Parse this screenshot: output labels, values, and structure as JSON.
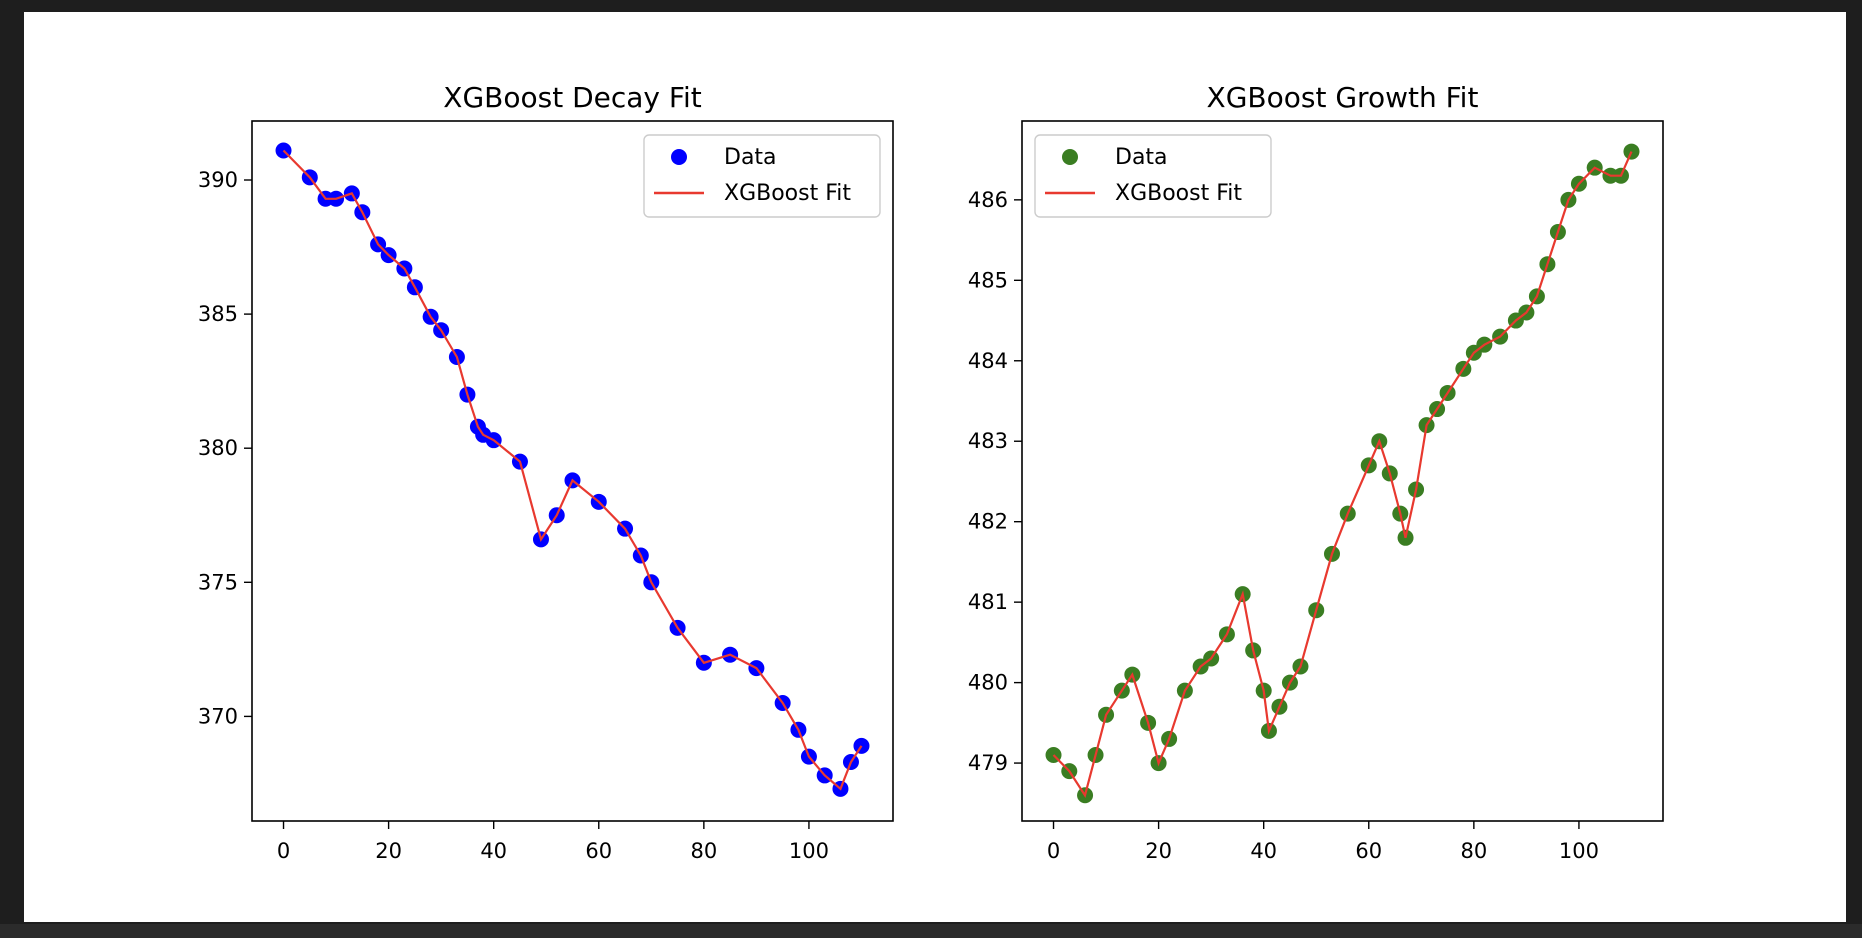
{
  "chart_data": [
    {
      "type": "scatter",
      "title": "XGBoost Decay Fit",
      "xlabel": "",
      "ylabel": "",
      "xlim": [
        -6,
        116
      ],
      "ylim": [
        366.1,
        392.2
      ],
      "xticks": [
        0,
        20,
        40,
        60,
        80,
        100
      ],
      "yticks": [
        370,
        375,
        380,
        385,
        390
      ],
      "grid": false,
      "legend": "top-right",
      "series": [
        {
          "name": "Data",
          "kind": "scatter",
          "color": "#0000ff",
          "x": [
            0,
            5,
            8,
            10,
            13,
            15,
            18,
            20,
            23,
            25,
            28,
            30,
            33,
            35,
            37,
            38,
            40,
            45,
            49,
            52,
            55,
            60,
            65,
            68,
            70,
            75,
            80,
            85,
            90,
            95,
            98,
            100,
            103,
            106,
            108,
            110
          ],
          "y": [
            391.1,
            390.1,
            389.3,
            389.3,
            389.5,
            388.8,
            387.6,
            387.2,
            386.7,
            386.0,
            384.9,
            384.4,
            383.4,
            382.0,
            380.8,
            380.5,
            380.3,
            379.5,
            376.6,
            377.5,
            378.8,
            378.0,
            377.0,
            376.0,
            375.0,
            373.3,
            372.0,
            372.3,
            371.8,
            370.5,
            369.5,
            368.5,
            367.8,
            367.3,
            368.3,
            368.9
          ]
        },
        {
          "name": "XGBoost Fit",
          "kind": "line",
          "color": "#e8392f",
          "x": [
            0,
            5,
            8,
            10,
            13,
            15,
            18,
            20,
            23,
            25,
            28,
            30,
            33,
            35,
            37,
            38,
            40,
            45,
            49,
            52,
            55,
            60,
            65,
            68,
            70,
            75,
            80,
            85,
            90,
            95,
            98,
            100,
            103,
            106,
            108,
            110
          ],
          "y": [
            391.1,
            390.1,
            389.3,
            389.3,
            389.5,
            388.8,
            387.6,
            387.2,
            386.7,
            386.0,
            384.9,
            384.4,
            383.4,
            382.0,
            380.8,
            380.5,
            380.3,
            379.5,
            376.6,
            377.5,
            378.8,
            378.0,
            377.0,
            376.0,
            375.0,
            373.3,
            372.0,
            372.3,
            371.8,
            370.5,
            369.5,
            368.5,
            367.8,
            367.3,
            368.3,
            368.9
          ]
        }
      ]
    },
    {
      "type": "scatter",
      "title": "XGBoost Growth Fit",
      "xlabel": "",
      "ylabel": "",
      "xlim": [
        -6,
        116
      ],
      "ylim": [
        478.28,
        486.98
      ],
      "xticks": [
        0,
        20,
        40,
        60,
        80,
        100
      ],
      "yticks": [
        479,
        480,
        481,
        482,
        483,
        484,
        485,
        486
      ],
      "grid": false,
      "legend": "top-left",
      "series": [
        {
          "name": "Data",
          "kind": "scatter",
          "color": "#3a7d22",
          "x": [
            0,
            3,
            6,
            8,
            10,
            13,
            15,
            18,
            20,
            22,
            25,
            28,
            30,
            33,
            36,
            38,
            40,
            41,
            43,
            45,
            47,
            50,
            53,
            56,
            60,
            62,
            64,
            66,
            67,
            69,
            71,
            73,
            75,
            78,
            80,
            82,
            85,
            88,
            90,
            92,
            94,
            96,
            98,
            100,
            103,
            106,
            108,
            110
          ],
          "y": [
            479.1,
            478.9,
            478.6,
            479.1,
            479.6,
            479.9,
            480.1,
            479.5,
            479.0,
            479.3,
            479.9,
            480.2,
            480.3,
            480.6,
            481.1,
            480.4,
            479.9,
            479.4,
            479.7,
            480.0,
            480.2,
            480.9,
            481.6,
            482.1,
            482.7,
            483.0,
            482.6,
            482.1,
            481.8,
            482.4,
            483.2,
            483.4,
            483.6,
            483.9,
            484.1,
            484.2,
            484.3,
            484.5,
            484.6,
            484.8,
            485.2,
            485.6,
            486.0,
            486.2,
            486.4,
            486.3,
            486.3,
            486.6
          ]
        },
        {
          "name": "XGBoost Fit",
          "kind": "line",
          "color": "#e8392f",
          "x": [
            0,
            3,
            6,
            8,
            10,
            13,
            15,
            18,
            20,
            22,
            25,
            28,
            30,
            33,
            36,
            38,
            40,
            41,
            43,
            45,
            47,
            50,
            53,
            56,
            60,
            62,
            64,
            66,
            67,
            69,
            71,
            73,
            75,
            78,
            80,
            82,
            85,
            88,
            90,
            92,
            94,
            96,
            98,
            100,
            103,
            106,
            108,
            110
          ],
          "y": [
            479.1,
            478.9,
            478.6,
            479.1,
            479.6,
            479.9,
            480.1,
            479.5,
            479.0,
            479.3,
            479.9,
            480.2,
            480.3,
            480.6,
            481.1,
            480.4,
            479.9,
            479.4,
            479.7,
            480.0,
            480.2,
            480.9,
            481.6,
            482.1,
            482.7,
            483.0,
            482.6,
            482.1,
            481.8,
            482.4,
            483.2,
            483.4,
            483.6,
            483.9,
            484.1,
            484.2,
            484.3,
            484.5,
            484.6,
            484.8,
            485.2,
            485.6,
            486.0,
            486.2,
            486.4,
            486.3,
            486.3,
            486.6
          ]
        }
      ]
    }
  ]
}
